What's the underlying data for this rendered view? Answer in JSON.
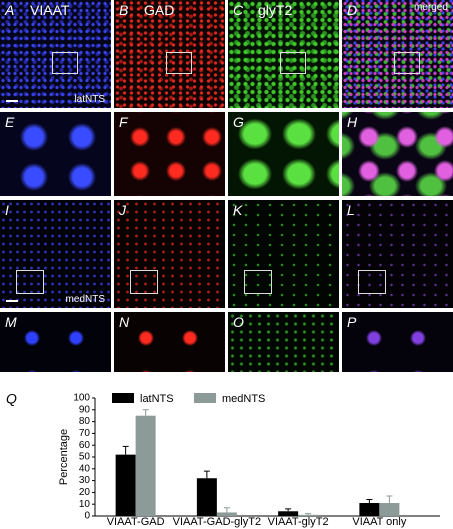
{
  "panels": [
    {
      "label": "A",
      "channel": "VIAAT",
      "region": "latNTS"
    },
    {
      "label": "B",
      "channel": "GAD"
    },
    {
      "label": "C",
      "channel": "glyT2"
    },
    {
      "label": "D",
      "channel": "merged"
    },
    {
      "label": "E"
    },
    {
      "label": "F"
    },
    {
      "label": "G"
    },
    {
      "label": "H"
    },
    {
      "label": "I",
      "region": "medNTS"
    },
    {
      "label": "J"
    },
    {
      "label": "K"
    },
    {
      "label": "L"
    },
    {
      "label": "M"
    },
    {
      "label": "N"
    },
    {
      "label": "O"
    },
    {
      "label": "P"
    }
  ],
  "chart_data": {
    "type": "bar",
    "panel_label": "Q",
    "y_label": "Percentage",
    "categories": [
      "VIAAT-GAD",
      "VIAAT-GAD-glyT2",
      "VIAAT-glyT2",
      "VIAAT only"
    ],
    "series": [
      {
        "name": "latNTS",
        "color": "#000000",
        "values": [
          52,
          32,
          4,
          11
        ],
        "errors": [
          7,
          6,
          2,
          3
        ]
      },
      {
        "name": "medNTS",
        "color": "#8c9a98",
        "values": [
          85,
          3,
          1,
          11
        ],
        "errors": [
          5,
          4,
          1,
          6
        ]
      }
    ],
    "ylim": [
      0,
      100
    ],
    "yticks": [
      0,
      10,
      20,
      30,
      40,
      50,
      60,
      70,
      80,
      90,
      100
    ],
    "legend": "top"
  }
}
